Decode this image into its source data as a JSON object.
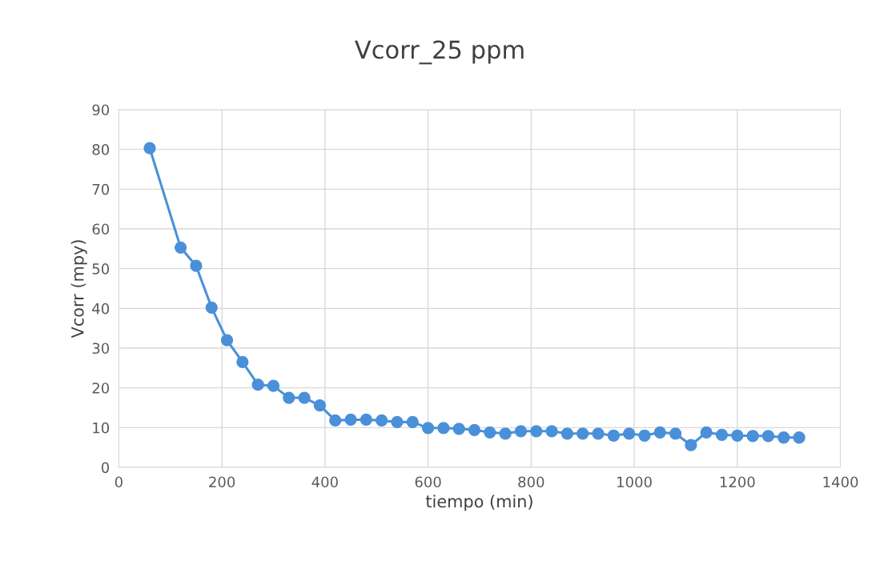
{
  "chart_data": {
    "type": "line",
    "title": "Vcorr_25 ppm",
    "xlabel": "tiempo (min)",
    "ylabel": "Vcorr (mpy)",
    "x": [
      60,
      120,
      150,
      180,
      210,
      240,
      270,
      300,
      330,
      360,
      390,
      420,
      450,
      480,
      510,
      540,
      570,
      600,
      630,
      660,
      690,
      720,
      750,
      780,
      810,
      840,
      870,
      900,
      930,
      960,
      990,
      1020,
      1050,
      1080,
      1110,
      1140,
      1170,
      1200,
      1230,
      1260,
      1290,
      1320
    ],
    "series": [
      {
        "color": "#4a90d9",
        "values": [
          80.3,
          55.3,
          50.7,
          40.2,
          32,
          26.5,
          20.8,
          20.5,
          17.5,
          17.5,
          15.6,
          11.8,
          12,
          12,
          11.8,
          11.4,
          11.4,
          9.9,
          9.9,
          9.7,
          9.4,
          8.8,
          8.5,
          9.1,
          9.1,
          9.1,
          8.5,
          8.5,
          8.5,
          8,
          8.5,
          8,
          8.8,
          8.5,
          5.6,
          8.8,
          8.2,
          8,
          7.9,
          7.9,
          7.5,
          7.5
        ]
      }
    ],
    "xlim": [
      0,
      1400
    ],
    "xticks": [
      0,
      200,
      400,
      600,
      800,
      1000,
      1200,
      1400
    ],
    "ylim": [
      0,
      90
    ],
    "yticks": [
      0,
      10,
      20,
      30,
      40,
      50,
      60,
      70,
      80,
      90
    ],
    "grid": true,
    "marker": "circle",
    "line_style": "solid"
  }
}
